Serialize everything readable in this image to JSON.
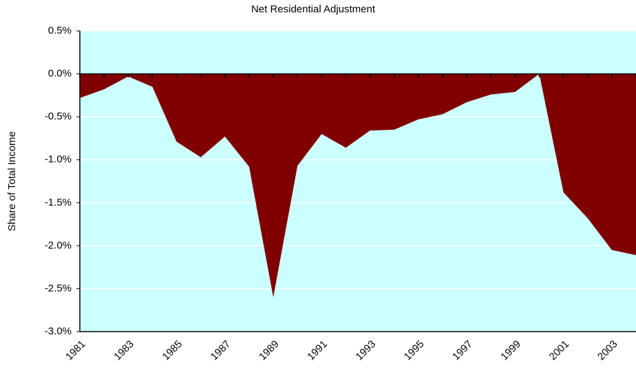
{
  "chart_data": {
    "type": "area",
    "title": "Net Residential Adjustment",
    "y_label": "Share of Total Income",
    "categories": [
      "1981",
      null,
      "1983",
      null,
      "1985",
      null,
      "1987",
      null,
      "1989",
      null,
      "1991",
      null,
      "1993",
      null,
      "1995",
      null,
      "1997",
      null,
      "1999",
      null,
      "2001",
      null,
      "2003",
      null
    ],
    "values": [
      -0.28,
      -0.18,
      -0.03,
      -0.15,
      -0.79,
      -0.97,
      -0.73,
      -1.08,
      -2.6,
      -1.07,
      -0.7,
      -0.86,
      -0.66,
      -0.65,
      -0.53,
      -0.47,
      -0.33,
      -0.24,
      -0.21,
      0.0,
      -1.38,
      -1.68,
      -2.05,
      -2.11
    ],
    "color": "#800000",
    "background": "#ccffff",
    "grid": true,
    "ylim": [
      -3.0,
      0.5
    ],
    "yticks": [
      {
        "value": -3.0,
        "label": "-3.0%"
      },
      {
        "value": -2.5,
        "label": "-2.5%"
      },
      {
        "value": -2.0,
        "label": "-2.0%"
      },
      {
        "value": -1.5,
        "label": "-1.5%"
      },
      {
        "value": -1.0,
        "label": "-1.0%"
      },
      {
        "value": -0.5,
        "label": "-0.5%"
      },
      {
        "value": 0.0,
        "label": "0.0%"
      },
      {
        "value": 0.5,
        "label": "0.5%"
      }
    ]
  }
}
